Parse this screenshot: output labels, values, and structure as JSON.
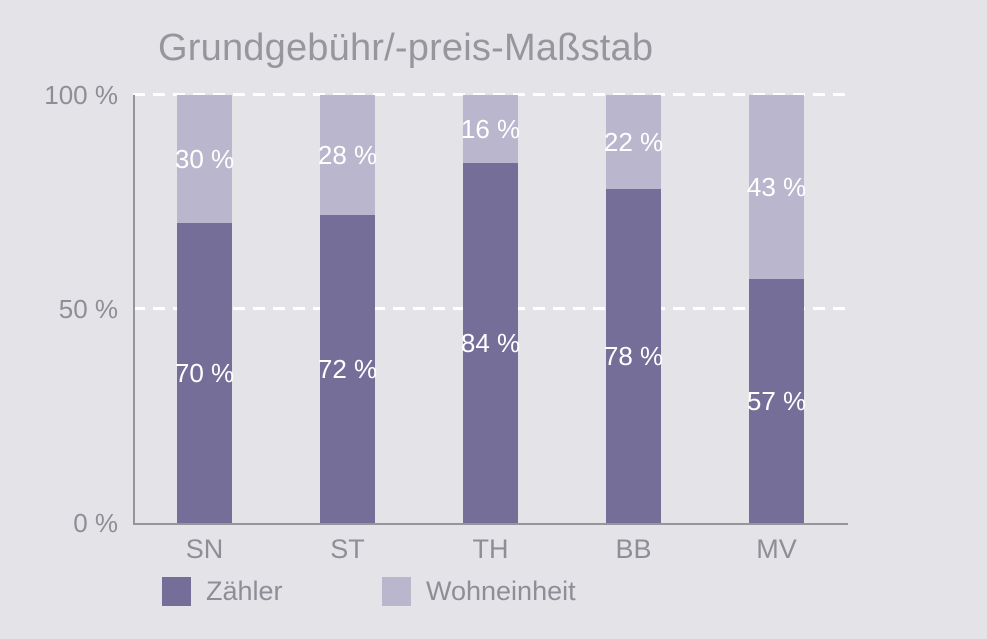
{
  "title": "Grundgebühr/-preis-Maßstab",
  "colors": {
    "background": "#e4e3e7",
    "zaehler": "#746e99",
    "wohneinheit": "#bab6cd",
    "axis": "#96959c",
    "muted_text": "#8f8e96",
    "title_text": "#97969d",
    "gridline": "#ffffff",
    "bar_label_text": "#ffffff"
  },
  "chart_data": {
    "type": "bar",
    "stacked": true,
    "title": "Grundgebühr/-preis-Maßstab",
    "categories": [
      "SN",
      "ST",
      "TH",
      "BB",
      "MV"
    ],
    "series": [
      {
        "name": "Zähler",
        "color": "#746e99",
        "values": [
          70,
          72,
          84,
          78,
          57
        ],
        "labels": [
          "70 %",
          "72 %",
          "84 %",
          "78 %",
          "57 %"
        ]
      },
      {
        "name": "Wohneinheit",
        "color": "#bab6cd",
        "values": [
          30,
          28,
          16,
          22,
          43
        ],
        "labels": [
          "30 %",
          "28 %",
          "16 %",
          "22 %",
          "43 %"
        ]
      }
    ],
    "xlabel": "",
    "ylabel": "",
    "ylim": [
      0,
      100
    ],
    "yticks": [
      {
        "value": 100,
        "label": "100 %"
      },
      {
        "value": 50,
        "label": "50 %"
      },
      {
        "value": 0,
        "label": "0 %"
      }
    ],
    "grid": "horizontal white dashed lines at 50% and 100%",
    "legend_position": "bottom"
  },
  "legend": {
    "items": [
      {
        "label": "Zähler",
        "color": "#746e99"
      },
      {
        "label": "Wohneinheit",
        "color": "#bab6cd"
      }
    ]
  }
}
